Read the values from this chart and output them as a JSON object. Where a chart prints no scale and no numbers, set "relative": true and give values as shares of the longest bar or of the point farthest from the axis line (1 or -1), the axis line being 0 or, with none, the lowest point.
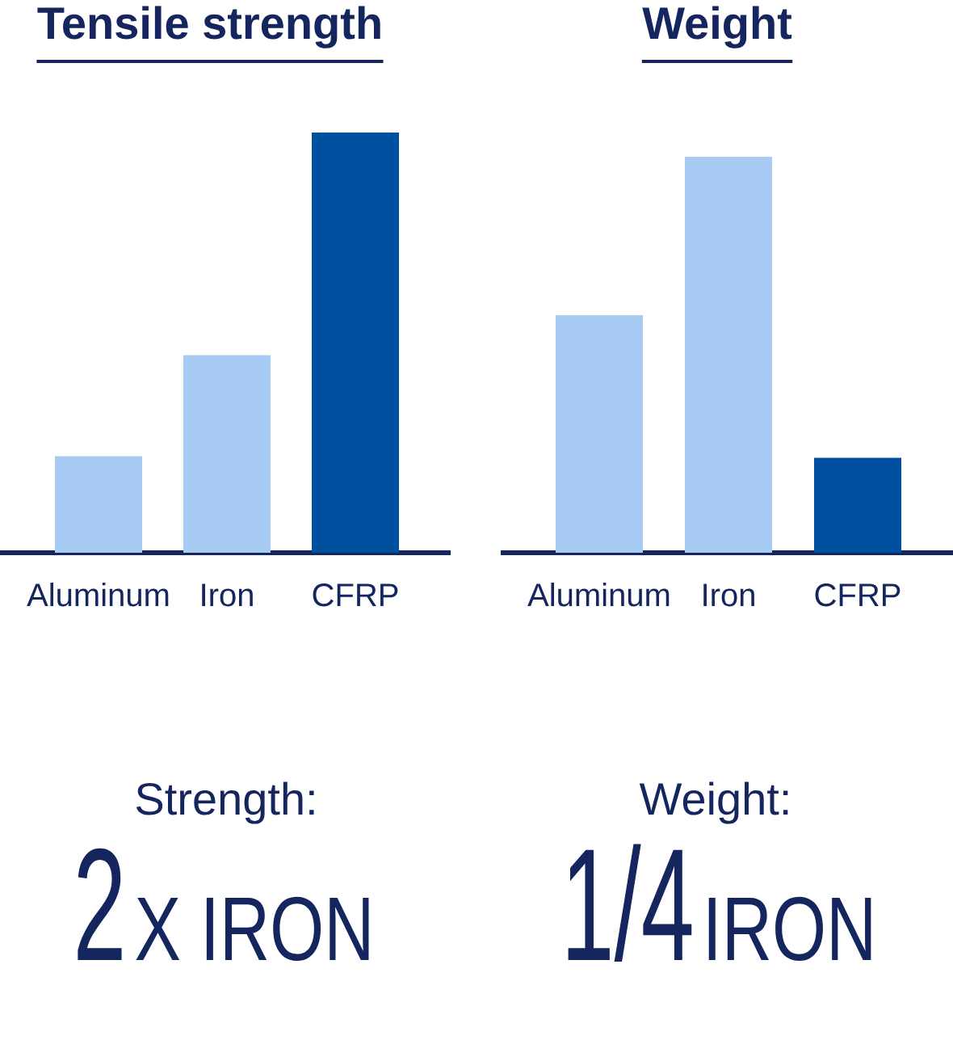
{
  "chart_data": [
    {
      "type": "bar",
      "title": "Tensile strength",
      "categories": [
        "Aluminum",
        "Iron",
        "CFRP"
      ],
      "values": [
        0.23,
        0.47,
        1
      ],
      "colors": [
        "#a7cbf2",
        "#a7cbf2",
        "#0050a0"
      ],
      "relative": true,
      "annotations": [
        "Strength:",
        "2",
        "X IRON"
      ]
    },
    {
      "type": "bar",
      "title": "Weight",
      "categories": [
        "Aluminum",
        "Iron",
        "CFRP"
      ],
      "values": [
        0.6,
        1,
        0.24
      ],
      "colors": [
        "#a7cbf2",
        "#a7cbf2",
        "#0050a0"
      ],
      "relative": true,
      "annotations": [
        "Weight:",
        "1/4",
        "IRON"
      ]
    }
  ]
}
